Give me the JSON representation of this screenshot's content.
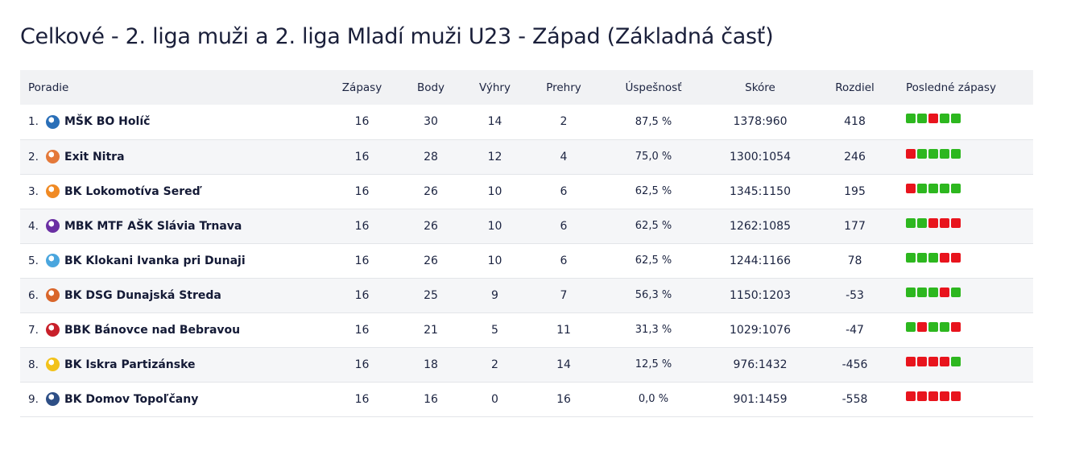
{
  "title": "Celkové - 2. liga muži a 2. liga Mladí muži U23 - Západ (Základná časť)",
  "colors": {
    "win": "#2db71f",
    "loss": "#e8141d",
    "header_bg": "#f1f2f4"
  },
  "headers": {
    "rank": "Poradie",
    "games": "Zápasy",
    "points": "Body",
    "wins": "Výhry",
    "losses": "Prehry",
    "pct": "Úspešnosť",
    "score": "Skóre",
    "diff": "Rozdiel",
    "form": "Posledné zápasy"
  },
  "rows": [
    {
      "pos": "1.",
      "team": "MŠK BO Holíč",
      "logo": "shield-logo-icon",
      "logo_color": "#2a6fb8",
      "games": "16",
      "points": "30",
      "wins": "14",
      "losses": "2",
      "pct": "87,5 %",
      "score": "1378:960",
      "diff": "418",
      "form": [
        "W",
        "W",
        "L",
        "W",
        "W"
      ]
    },
    {
      "pos": "2.",
      "team": "Exit Nitra",
      "logo": "ball-logo-icon",
      "logo_color": "#e4793a",
      "games": "16",
      "points": "28",
      "wins": "12",
      "losses": "4",
      "pct": "75,0 %",
      "score": "1300:1054",
      "diff": "246",
      "form": [
        "L",
        "W",
        "W",
        "W",
        "W"
      ]
    },
    {
      "pos": "3.",
      "team": "BK Lokomotíva Sereď",
      "logo": "ball-logo-icon",
      "logo_color": "#f08a24",
      "games": "16",
      "points": "26",
      "wins": "10",
      "losses": "6",
      "pct": "62,5 %",
      "score": "1345:1150",
      "diff": "195",
      "form": [
        "L",
        "W",
        "W",
        "W",
        "W"
      ]
    },
    {
      "pos": "4.",
      "team": "MBK MTF AŠK Slávia Trnava",
      "logo": "crown-logo-icon",
      "logo_color": "#6a2fa3",
      "games": "16",
      "points": "26",
      "wins": "10",
      "losses": "6",
      "pct": "62,5 %",
      "score": "1262:1085",
      "diff": "177",
      "form": [
        "W",
        "W",
        "L",
        "L",
        "L"
      ]
    },
    {
      "pos": "5.",
      "team": "BK Klokani Ivanka pri Dunaji",
      "logo": "kangaroo-logo-icon",
      "logo_color": "#4aa6de",
      "games": "16",
      "points": "26",
      "wins": "10",
      "losses": "6",
      "pct": "62,5 %",
      "score": "1244:1166",
      "diff": "78",
      "form": [
        "W",
        "W",
        "W",
        "L",
        "L"
      ]
    },
    {
      "pos": "6.",
      "team": "BK DSG Dunajská Streda",
      "logo": "ball-logo-icon",
      "logo_color": "#d9662b",
      "games": "16",
      "points": "25",
      "wins": "9",
      "losses": "7",
      "pct": "56,3 %",
      "score": "1150:1203",
      "diff": "-53",
      "form": [
        "W",
        "W",
        "W",
        "L",
        "W"
      ]
    },
    {
      "pos": "7.",
      "team": "BBK Bánovce nad Bebravou",
      "logo": "badge-logo-icon",
      "logo_color": "#c8202a",
      "games": "16",
      "points": "21",
      "wins": "5",
      "losses": "11",
      "pct": "31,3 %",
      "score": "1029:1076",
      "diff": "-47",
      "form": [
        "W",
        "L",
        "W",
        "W",
        "L"
      ]
    },
    {
      "pos": "8.",
      "team": "BK Iskra Partizánske",
      "logo": "star-logo-icon",
      "logo_color": "#f2c21a",
      "games": "16",
      "points": "18",
      "wins": "2",
      "losses": "14",
      "pct": "12,5 %",
      "score": "976:1432",
      "diff": "-456",
      "form": [
        "L",
        "L",
        "L",
        "L",
        "W"
      ]
    },
    {
      "pos": "9.",
      "team": "BK Domov Topoľčany",
      "logo": "shield-logo-icon",
      "logo_color": "#2e4f86",
      "games": "16",
      "points": "16",
      "wins": "0",
      "losses": "16",
      "pct": "0,0 %",
      "score": "901:1459",
      "diff": "-558",
      "form": [
        "L",
        "L",
        "L",
        "L",
        "L"
      ]
    }
  ]
}
